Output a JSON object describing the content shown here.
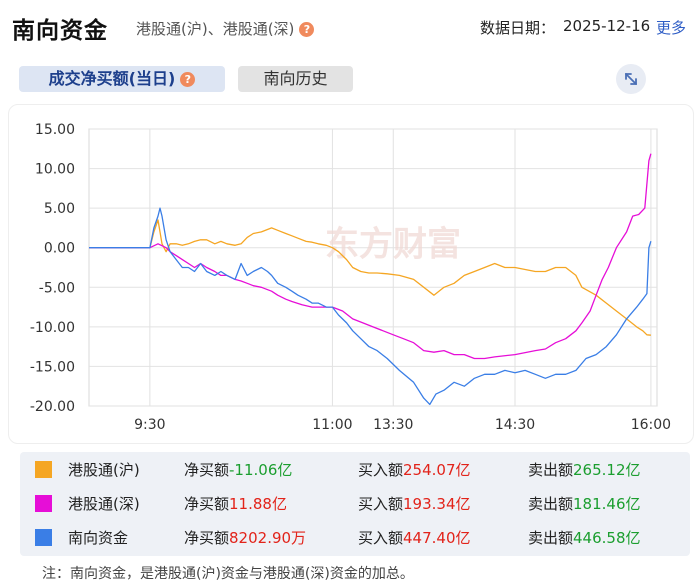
{
  "header": {
    "title": "南向资金",
    "subtitle": "港股通(沪)、港股通(深)",
    "date_label": "数据日期：",
    "date_value": "2025-12-16",
    "more_label": "更多"
  },
  "tabs": [
    {
      "label": "成交净买额(当日)",
      "active": true
    },
    {
      "label": "南向历史",
      "active": false
    }
  ],
  "help_glyph": "?",
  "icons": {
    "help": "question-circle-icon",
    "expand": "expand-diagonal-icon"
  },
  "watermark": "东方财富",
  "chart_data": {
    "type": "line",
    "title": "",
    "xlabel": "",
    "ylabel": "",
    "x_ticks": [
      "9:30",
      "11:00",
      "13:30",
      "14:30",
      "16:00"
    ],
    "ylim": [
      -20,
      15
    ],
    "y_ticks": [
      "15.00",
      "10.00",
      "5.00",
      "0.00",
      "-5.00",
      "-10.00",
      "-15.00",
      "-20.00"
    ],
    "grid": true,
    "x_axis_note": "minutes since 9:00; lunch break 12:00-13:00 compressed",
    "series": [
      {
        "name": "港股通(沪)",
        "color": "#f5a623",
        "points": [
          [
            0,
            0
          ],
          [
            30,
            0
          ],
          [
            32,
            2
          ],
          [
            34,
            3.5
          ],
          [
            36,
            0.5
          ],
          [
            38,
            -0.5
          ],
          [
            40,
            0.5
          ],
          [
            43,
            0.5
          ],
          [
            46,
            0.3
          ],
          [
            49,
            0.5
          ],
          [
            52,
            0.8
          ],
          [
            55,
            1
          ],
          [
            58,
            1
          ],
          [
            62,
            0.5
          ],
          [
            65,
            0.8
          ],
          [
            68,
            0.5
          ],
          [
            72,
            0.3
          ],
          [
            75,
            0.5
          ],
          [
            78,
            1.3
          ],
          [
            81,
            1.8
          ],
          [
            85,
            2
          ],
          [
            90,
            2.5
          ],
          [
            93,
            2.2
          ],
          [
            97,
            1.8
          ],
          [
            100,
            1.5
          ],
          [
            103,
            1.2
          ],
          [
            107,
            0.8
          ],
          [
            110,
            0.7
          ],
          [
            113,
            0.5
          ],
          [
            117,
            0.3
          ],
          [
            120,
            0
          ],
          [
            240,
            0
          ],
          [
            243,
            -0.5
          ],
          [
            247,
            -1.5
          ],
          [
            250,
            -2.5
          ],
          [
            254,
            -3
          ],
          [
            258,
            -3.2
          ],
          [
            262,
            -3.2
          ],
          [
            267,
            -3.3
          ],
          [
            273,
            -3.5
          ],
          [
            280,
            -4
          ],
          [
            290,
            -6
          ],
          [
            295,
            -5
          ],
          [
            300,
            -4.5
          ],
          [
            305,
            -3.5
          ],
          [
            310,
            -3
          ],
          [
            315,
            -2.5
          ],
          [
            320,
            -2
          ],
          [
            325,
            -2.5
          ],
          [
            330,
            -2.5
          ],
          [
            340,
            -3
          ],
          [
            345,
            -3
          ],
          [
            350,
            -2.5
          ],
          [
            355,
            -2.5
          ],
          [
            360,
            -3.5
          ],
          [
            363,
            -5
          ],
          [
            370,
            -6
          ],
          [
            375,
            -7
          ],
          [
            380,
            -8
          ],
          [
            385,
            -9
          ],
          [
            390,
            -10
          ],
          [
            393,
            -10.5
          ],
          [
            395,
            -11
          ],
          [
            397,
            -11.06
          ]
        ]
      },
      {
        "name": "港股通(深)",
        "color": "#e60ed7",
        "points": [
          [
            0,
            0
          ],
          [
            30,
            0
          ],
          [
            34,
            0.5
          ],
          [
            38,
            0
          ],
          [
            40,
            -0.5
          ],
          [
            43,
            -1
          ],
          [
            46,
            -1.5
          ],
          [
            49,
            -2
          ],
          [
            52,
            -2.5
          ],
          [
            55,
            -2
          ],
          [
            58,
            -2.5
          ],
          [
            62,
            -3
          ],
          [
            65,
            -3.5
          ],
          [
            68,
            -3.5
          ],
          [
            72,
            -4
          ],
          [
            75,
            -4.2
          ],
          [
            78,
            -4.5
          ],
          [
            81,
            -4.8
          ],
          [
            85,
            -5
          ],
          [
            90,
            -5.5
          ],
          [
            93,
            -6
          ],
          [
            97,
            -6.5
          ],
          [
            100,
            -6.8
          ],
          [
            105,
            -7.2
          ],
          [
            110,
            -7.5
          ],
          [
            115,
            -7.5
          ],
          [
            120,
            -7.5
          ],
          [
            240,
            -7.5
          ],
          [
            245,
            -8
          ],
          [
            250,
            -9
          ],
          [
            255,
            -9.5
          ],
          [
            260,
            -10
          ],
          [
            265,
            -10.5
          ],
          [
            270,
            -11
          ],
          [
            275,
            -11.5
          ],
          [
            280,
            -12
          ],
          [
            285,
            -13
          ],
          [
            290,
            -13.2
          ],
          [
            295,
            -13
          ],
          [
            300,
            -13.5
          ],
          [
            305,
            -13.5
          ],
          [
            310,
            -14
          ],
          [
            315,
            -14
          ],
          [
            320,
            -13.8
          ],
          [
            330,
            -13.5
          ],
          [
            340,
            -13
          ],
          [
            345,
            -12.8
          ],
          [
            350,
            -12
          ],
          [
            355,
            -11.5
          ],
          [
            360,
            -10.5
          ],
          [
            363,
            -9.5
          ],
          [
            367,
            -8
          ],
          [
            370,
            -6
          ],
          [
            373,
            -4
          ],
          [
            376,
            -2.5
          ],
          [
            380,
            0
          ],
          [
            385,
            2
          ],
          [
            388,
            4
          ],
          [
            391,
            4.2
          ],
          [
            394,
            5
          ],
          [
            396,
            11
          ],
          [
            397,
            11.88
          ]
        ]
      },
      {
        "name": "南向资金",
        "color": "#3a7ee6",
        "points": [
          [
            0,
            0
          ],
          [
            30,
            0
          ],
          [
            32,
            2.5
          ],
          [
            34,
            4
          ],
          [
            35,
            5
          ],
          [
            36,
            4
          ],
          [
            38,
            1
          ],
          [
            40,
            -0.5
          ],
          [
            43,
            -1.5
          ],
          [
            46,
            -2.5
          ],
          [
            49,
            -2.5
          ],
          [
            52,
            -3
          ],
          [
            55,
            -2
          ],
          [
            58,
            -3
          ],
          [
            62,
            -3.5
          ],
          [
            65,
            -3
          ],
          [
            68,
            -3.5
          ],
          [
            72,
            -4
          ],
          [
            75,
            -2
          ],
          [
            78,
            -3.5
          ],
          [
            81,
            -3
          ],
          [
            85,
            -2.5
          ],
          [
            88,
            -3
          ],
          [
            90,
            -3.5
          ],
          [
            93,
            -4.5
          ],
          [
            97,
            -5
          ],
          [
            100,
            -5.5
          ],
          [
            103,
            -6
          ],
          [
            107,
            -6.5
          ],
          [
            110,
            -7
          ],
          [
            113,
            -7
          ],
          [
            117,
            -7.5
          ],
          [
            120,
            -7.5
          ],
          [
            240,
            -7.5
          ],
          [
            243,
            -8.5
          ],
          [
            247,
            -9.5
          ],
          [
            250,
            -10.5
          ],
          [
            254,
            -11.5
          ],
          [
            258,
            -12.5
          ],
          [
            262,
            -13
          ],
          [
            267,
            -14
          ],
          [
            273,
            -15.5
          ],
          [
            280,
            -17
          ],
          [
            285,
            -19
          ],
          [
            288,
            -19.8
          ],
          [
            291,
            -18.5
          ],
          [
            295,
            -18
          ],
          [
            300,
            -17
          ],
          [
            305,
            -17.5
          ],
          [
            310,
            -16.5
          ],
          [
            315,
            -16
          ],
          [
            320,
            -16
          ],
          [
            325,
            -15.5
          ],
          [
            330,
            -15.8
          ],
          [
            335,
            -15.5
          ],
          [
            340,
            -16
          ],
          [
            345,
            -16.5
          ],
          [
            350,
            -16
          ],
          [
            355,
            -16
          ],
          [
            360,
            -15.5
          ],
          [
            365,
            -14
          ],
          [
            370,
            -13.5
          ],
          [
            375,
            -12.5
          ],
          [
            380,
            -11
          ],
          [
            385,
            -9
          ],
          [
            390,
            -7.5
          ],
          [
            393,
            -6.5
          ],
          [
            395,
            -5.8
          ],
          [
            396,
            0
          ],
          [
            397,
            0.82
          ]
        ]
      }
    ]
  },
  "legend": [
    {
      "name": "港股通(沪)",
      "color": "#f5a623",
      "net_label": "净买额",
      "net_value": "-11.06亿",
      "net_color": "green",
      "buy_label": "买入额",
      "buy_value": "254.07亿",
      "sell_label": "卖出额",
      "sell_value": "265.12亿"
    },
    {
      "name": "港股通(深)",
      "color": "#e60ed7",
      "net_label": "净买额",
      "net_value": "11.88亿",
      "net_color": "red",
      "buy_label": "买入额",
      "buy_value": "193.34亿",
      "sell_label": "卖出额",
      "sell_value": "181.46亿"
    },
    {
      "name": "南向资金",
      "color": "#3a7ee6",
      "net_label": "净买额",
      "net_value": "8202.90万",
      "net_color": "red",
      "buy_label": "买入额",
      "buy_value": "447.40亿",
      "sell_label": "卖出额",
      "sell_value": "446.58亿"
    }
  ],
  "note": "注：南向资金，是港股通(沪)资金与港股通(深)资金的加总。"
}
